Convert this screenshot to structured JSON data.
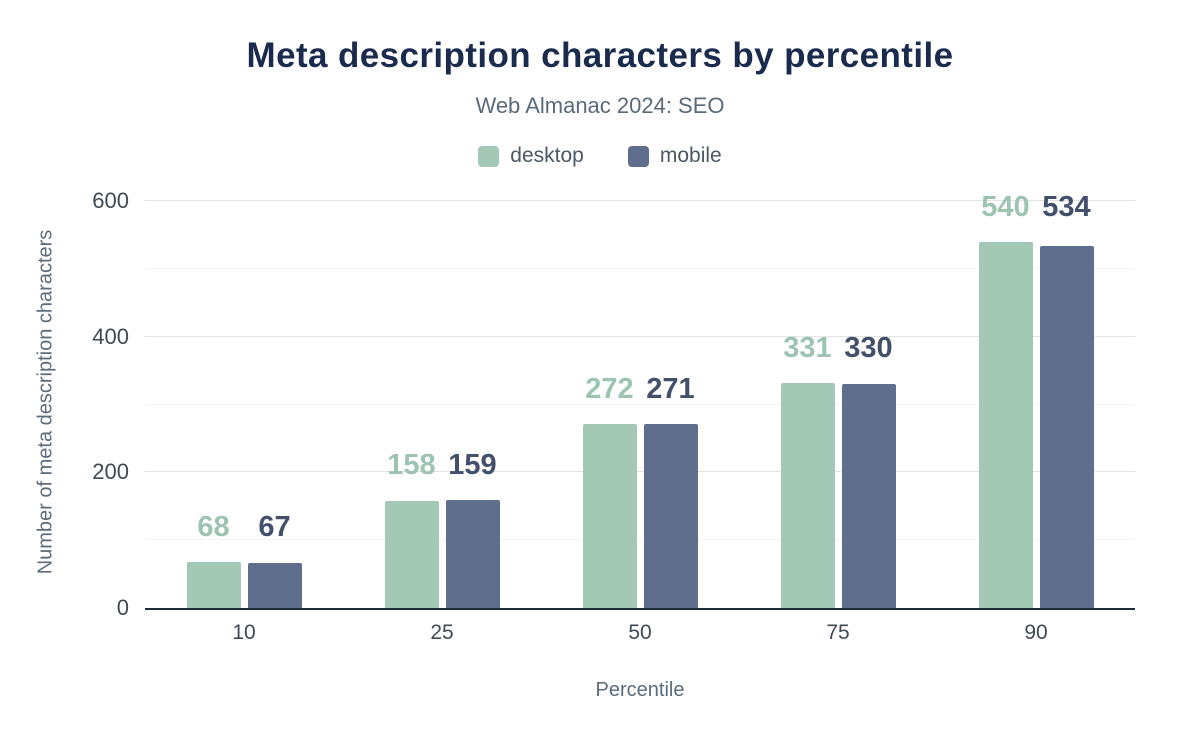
{
  "chart_data": {
    "type": "bar",
    "title": "Meta description characters by percentile",
    "subtitle": "Web Almanac 2024: SEO",
    "xlabel": "Percentile",
    "ylabel": "Number of meta description characters",
    "categories": [
      "10",
      "25",
      "50",
      "75",
      "90"
    ],
    "series": [
      {
        "name": "desktop",
        "values": [
          68,
          158,
          272,
          331,
          540
        ],
        "color": "#a3c9b6",
        "label_color": "#9cc4b1"
      },
      {
        "name": "mobile",
        "values": [
          67,
          159,
          271,
          330,
          534
        ],
        "color": "#5f6e8d",
        "label_color": "#42506b"
      }
    ],
    "ylim": [
      0,
      600
    ],
    "yticks": [
      0,
      200,
      400,
      600
    ],
    "grid": true,
    "legend_position": "top"
  },
  "colors": {
    "title": "#1a2b4d",
    "subtitle": "#5a6a79",
    "legend_text": "#4b5866",
    "tick_label": "#3f4a55",
    "axis_title": "#5c6c7b",
    "grid_major": "#e3e3e3",
    "grid_minor": "#f2f2f2",
    "axis_line": "#212b36",
    "background": "#ffffff"
  }
}
